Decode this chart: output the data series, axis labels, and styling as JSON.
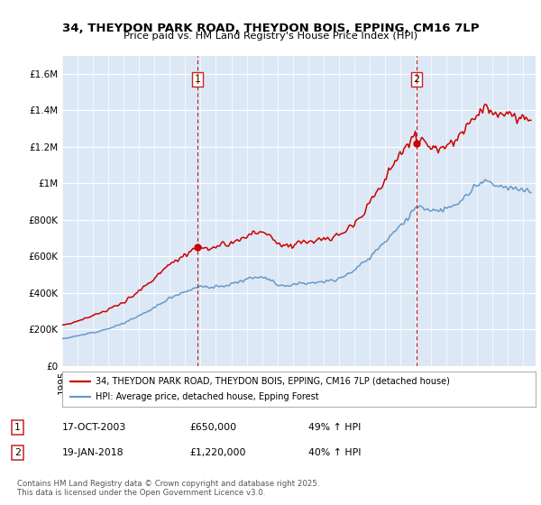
{
  "title1": "34, THEYDON PARK ROAD, THEYDON BOIS, EPPING, CM16 7LP",
  "title2": "Price paid vs. HM Land Registry's House Price Index (HPI)",
  "legend_line1": "34, THEYDON PARK ROAD, THEYDON BOIS, EPPING, CM16 7LP (detached house)",
  "legend_line2": "HPI: Average price, detached house, Epping Forest",
  "annotation1_label": "1",
  "annotation1_date": "17-OCT-2003",
  "annotation1_price": "£650,000",
  "annotation1_hpi": "49% ↑ HPI",
  "annotation2_label": "2",
  "annotation2_date": "19-JAN-2018",
  "annotation2_price": "£1,220,000",
  "annotation2_hpi": "40% ↑ HPI",
  "copyright": "Contains HM Land Registry data © Crown copyright and database right 2025.\nThis data is licensed under the Open Government Licence v3.0.",
  "sale1_year": 2003.79,
  "sale2_year": 2018.05,
  "sale1_price": 650000,
  "sale2_price": 1220000,
  "red_color": "#cc0000",
  "blue_color": "#6699cc",
  "background_color": "#dce8f5",
  "ylim_max": 1700000,
  "ylim_min": 0
}
